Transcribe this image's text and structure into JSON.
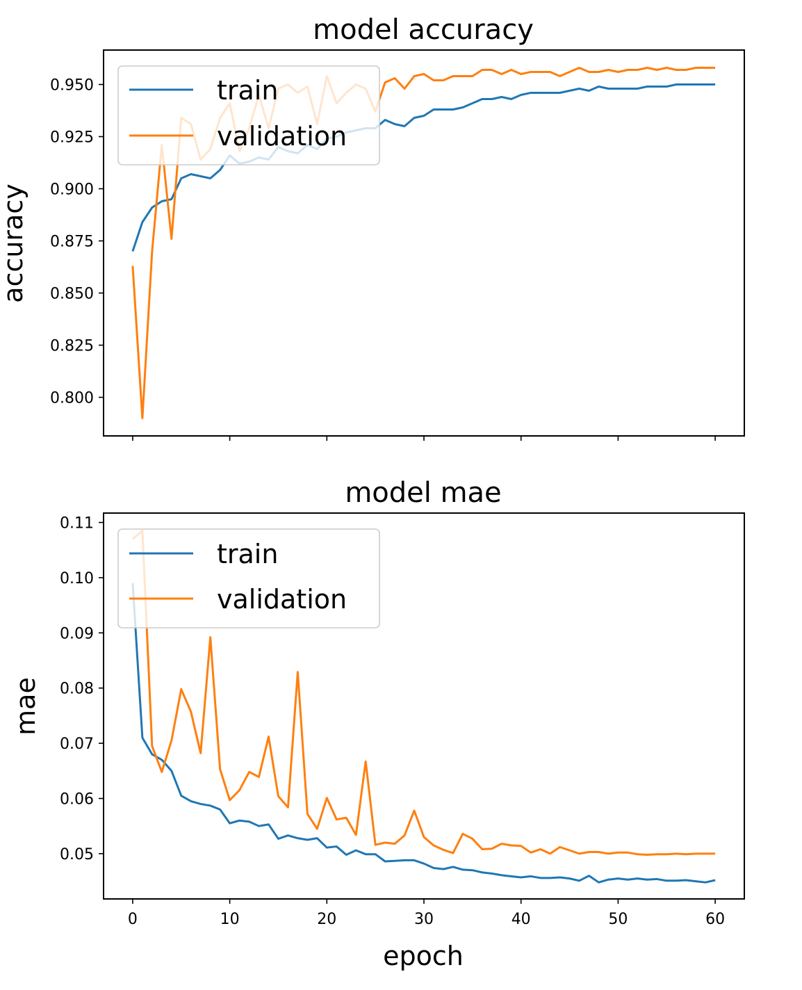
{
  "chart_data": [
    {
      "type": "line",
      "title": "model accuracy",
      "xlabel": "",
      "ylabel": "accuracy",
      "xlim": [
        -3,
        63
      ],
      "ylim": [
        0.7815,
        0.9665
      ],
      "xticks": [
        0,
        10,
        20,
        30,
        40,
        50,
        60
      ],
      "xtick_labels_visible": false,
      "yticks": [
        0.8,
        0.825,
        0.85,
        0.875,
        0.9,
        0.925,
        0.95
      ],
      "ytick_labels": [
        "0.800",
        "0.825",
        "0.850",
        "0.875",
        "0.900",
        "0.925",
        "0.950"
      ],
      "legend": "upper-left",
      "grid": false,
      "x": [
        0,
        1,
        2,
        3,
        4,
        5,
        6,
        7,
        8,
        9,
        10,
        11,
        12,
        13,
        14,
        15,
        16,
        17,
        18,
        19,
        20,
        21,
        22,
        23,
        24,
        25,
        26,
        27,
        28,
        29,
        30,
        31,
        32,
        33,
        34,
        35,
        36,
        37,
        38,
        39,
        40,
        41,
        42,
        43,
        44,
        45,
        46,
        47,
        48,
        49,
        50,
        51,
        52,
        53,
        54,
        55,
        56,
        57,
        58,
        59,
        60
      ],
      "series": [
        {
          "name": "train",
          "color": "#1f77b4",
          "values": [
            0.87,
            0.884,
            0.891,
            0.894,
            0.895,
            0.905,
            0.907,
            0.906,
            0.905,
            0.909,
            0.916,
            0.912,
            0.913,
            0.915,
            0.914,
            0.92,
            0.918,
            0.917,
            0.921,
            0.919,
            0.924,
            0.925,
            0.927,
            0.928,
            0.929,
            0.929,
            0.933,
            0.931,
            0.93,
            0.934,
            0.935,
            0.938,
            0.938,
            0.938,
            0.939,
            0.941,
            0.943,
            0.943,
            0.944,
            0.943,
            0.945,
            0.946,
            0.946,
            0.946,
            0.946,
            0.947,
            0.948,
            0.947,
            0.949,
            0.948,
            0.948,
            0.948,
            0.948,
            0.949,
            0.949,
            0.949,
            0.95,
            0.95,
            0.95,
            0.95,
            0.95
          ]
        },
        {
          "name": "validation",
          "color": "#ff7f0e",
          "values": [
            0.863,
            0.79,
            0.87,
            0.921,
            0.876,
            0.934,
            0.931,
            0.914,
            0.919,
            0.934,
            0.941,
            0.918,
            0.929,
            0.945,
            0.929,
            0.948,
            0.95,
            0.946,
            0.949,
            0.931,
            0.954,
            0.941,
            0.946,
            0.95,
            0.948,
            0.937,
            0.951,
            0.953,
            0.948,
            0.954,
            0.955,
            0.952,
            0.952,
            0.954,
            0.954,
            0.954,
            0.957,
            0.957,
            0.955,
            0.957,
            0.955,
            0.956,
            0.956,
            0.956,
            0.954,
            0.956,
            0.958,
            0.956,
            0.956,
            0.957,
            0.956,
            0.957,
            0.957,
            0.958,
            0.957,
            0.958,
            0.957,
            0.957,
            0.958,
            0.958,
            0.958
          ]
        }
      ]
    },
    {
      "type": "line",
      "title": "model mae",
      "xlabel": "epoch",
      "ylabel": "mae",
      "xlim": [
        -3,
        63
      ],
      "ylim": [
        0.0418,
        0.1117
      ],
      "xticks": [
        0,
        10,
        20,
        30,
        40,
        50,
        60
      ],
      "xtick_labels": [
        "0",
        "10",
        "20",
        "30",
        "40",
        "50",
        "60"
      ],
      "yticks": [
        0.05,
        0.06,
        0.07,
        0.08,
        0.09,
        0.1,
        0.11
      ],
      "ytick_labels": [
        "0.05",
        "0.06",
        "0.07",
        "0.08",
        "0.09",
        "0.10",
        "0.11"
      ],
      "legend": "upper-left",
      "grid": false,
      "x": [
        0,
        1,
        2,
        3,
        4,
        5,
        6,
        7,
        8,
        9,
        10,
        11,
        12,
        13,
        14,
        15,
        16,
        17,
        18,
        19,
        20,
        21,
        22,
        23,
        24,
        25,
        26,
        27,
        28,
        29,
        30,
        31,
        32,
        33,
        34,
        35,
        36,
        37,
        38,
        39,
        40,
        41,
        42,
        43,
        44,
        45,
        46,
        47,
        48,
        49,
        50,
        51,
        52,
        53,
        54,
        55,
        56,
        57,
        58,
        59,
        60
      ],
      "series": [
        {
          "name": "train",
          "color": "#1f77b4",
          "values": [
            0.099,
            0.071,
            0.068,
            0.067,
            0.065,
            0.0605,
            0.0595,
            0.059,
            0.0587,
            0.058,
            0.0555,
            0.056,
            0.0558,
            0.055,
            0.0553,
            0.0527,
            0.0533,
            0.0528,
            0.0525,
            0.0528,
            0.0511,
            0.0513,
            0.0498,
            0.0506,
            0.0499,
            0.0499,
            0.0486,
            0.0487,
            0.0488,
            0.0488,
            0.0482,
            0.0474,
            0.0472,
            0.0476,
            0.0471,
            0.047,
            0.0466,
            0.0464,
            0.0461,
            0.0459,
            0.0457,
            0.0459,
            0.0456,
            0.0456,
            0.0457,
            0.0455,
            0.0451,
            0.046,
            0.0448,
            0.0453,
            0.0455,
            0.0453,
            0.0455,
            0.0453,
            0.0454,
            0.0451,
            0.0451,
            0.0452,
            0.045,
            0.0448,
            0.0452
          ]
        },
        {
          "name": "validation",
          "color": "#ff7f0e",
          "values": [
            0.107,
            0.1085,
            0.0695,
            0.0648,
            0.0705,
            0.0798,
            0.0757,
            0.0682,
            0.0892,
            0.0653,
            0.0597,
            0.0615,
            0.0648,
            0.0639,
            0.0712,
            0.0604,
            0.0584,
            0.0829,
            0.0572,
            0.0545,
            0.0601,
            0.0562,
            0.0565,
            0.0534,
            0.0667,
            0.0516,
            0.052,
            0.0518,
            0.0533,
            0.0578,
            0.053,
            0.0515,
            0.0507,
            0.0501,
            0.0536,
            0.0527,
            0.0508,
            0.0509,
            0.0518,
            0.0515,
            0.0514,
            0.0502,
            0.0508,
            0.05,
            0.0512,
            0.0506,
            0.05,
            0.0503,
            0.0503,
            0.05,
            0.0502,
            0.0502,
            0.0499,
            0.0498,
            0.0499,
            0.0499,
            0.05,
            0.0499,
            0.05,
            0.05,
            0.05
          ]
        }
      ]
    }
  ]
}
